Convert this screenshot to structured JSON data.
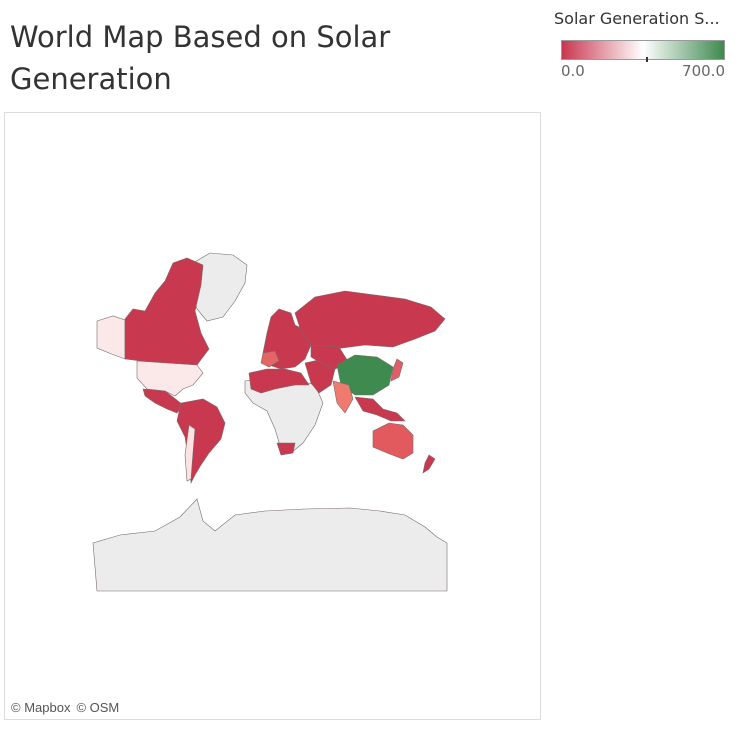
{
  "header": {
    "title": "World Map Based on Solar Generation"
  },
  "legend": {
    "title": "Solar Generation S...",
    "min_label": "0.0",
    "max_label": "700.0",
    "colors": {
      "low": "#c8374f",
      "mid": "#ffffff",
      "high": "#3e8a4f"
    }
  },
  "map": {
    "regions": [
      {
        "name": "Alaska",
        "color": "#fbe9e9"
      },
      {
        "name": "Canada",
        "color": "#c8394f"
      },
      {
        "name": "Greenland",
        "color": "#ececec"
      },
      {
        "name": "United States",
        "color": "#fbe9e9"
      },
      {
        "name": "Mexico",
        "color": "#c8394f"
      },
      {
        "name": "South America",
        "color": "#c8394f"
      },
      {
        "name": "Chile",
        "color": "#fbe3e3"
      },
      {
        "name": "Europe",
        "color": "#c8394f"
      },
      {
        "name": "Spain",
        "color": "#e56464"
      },
      {
        "name": "Africa",
        "color": "#ececec"
      },
      {
        "name": "North Africa",
        "color": "#c8394f"
      },
      {
        "name": "South Africa",
        "color": "#c8394f"
      },
      {
        "name": "Middle East",
        "color": "#c8394f"
      },
      {
        "name": "Russia",
        "color": "#c8394f"
      },
      {
        "name": "Kazakhstan",
        "color": "#c8394f"
      },
      {
        "name": "China",
        "color": "#3e8a4f"
      },
      {
        "name": "India",
        "color": "#ef7a6e"
      },
      {
        "name": "Japan",
        "color": "#e25e66"
      },
      {
        "name": "Southeast Asia",
        "color": "#c8394f"
      },
      {
        "name": "Australia",
        "color": "#e25a5d"
      },
      {
        "name": "New Zealand",
        "color": "#c8394f"
      },
      {
        "name": "Antarctica",
        "color": "#ececec"
      }
    ]
  },
  "attribution": {
    "mapbox": "© Mapbox",
    "osm": "© OSM"
  }
}
